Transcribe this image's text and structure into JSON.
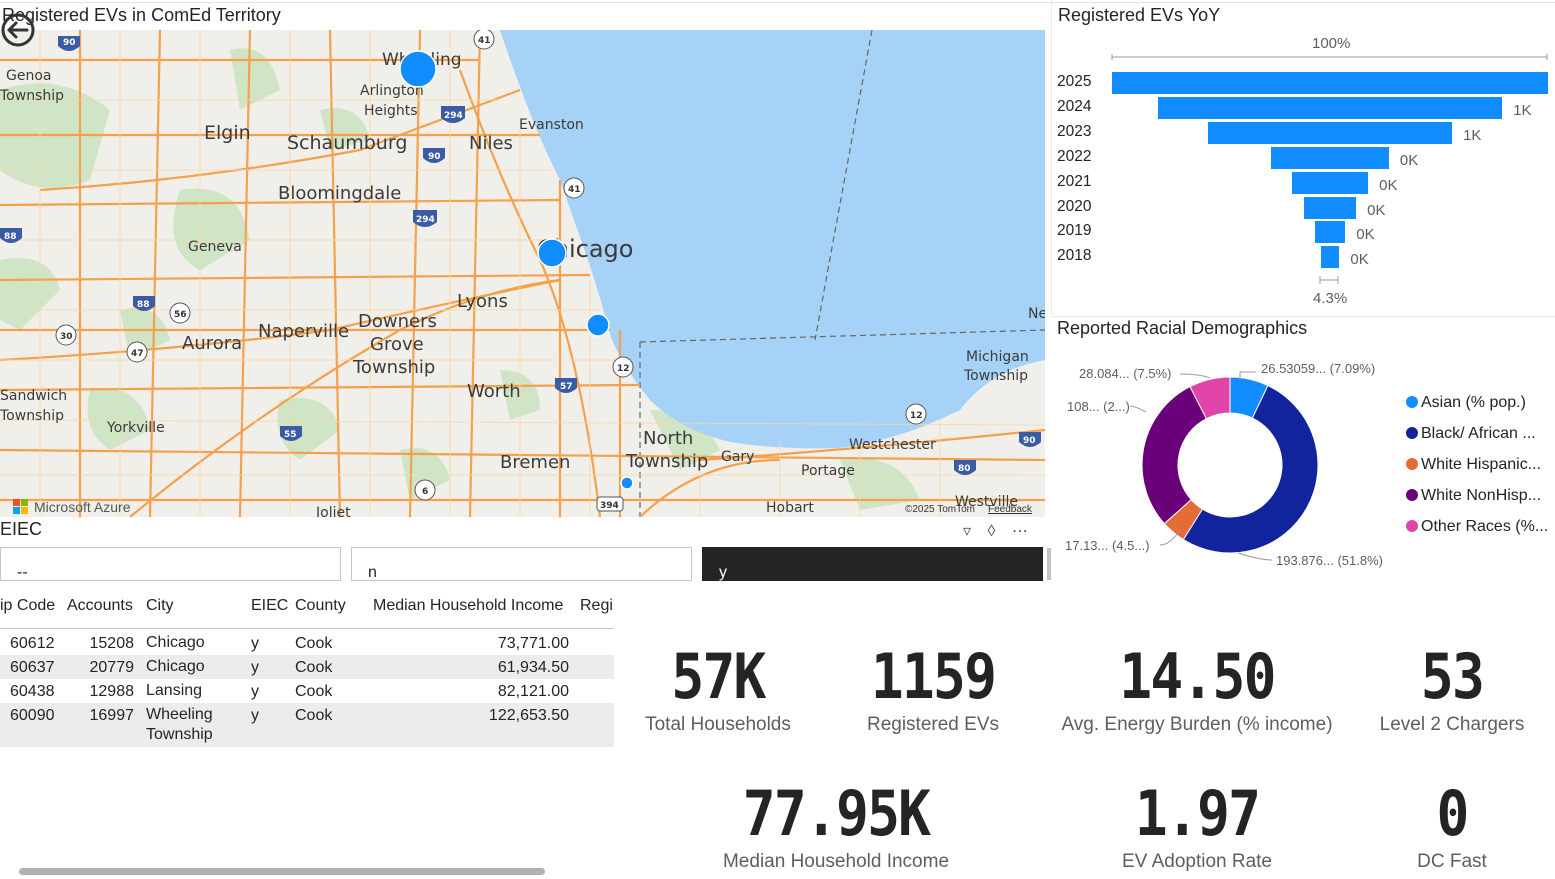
{
  "map": {
    "title": "Registered EVs in ComEd Territory",
    "attribution": "Microsoft Azure",
    "copyright": "©2025 TomTom",
    "feedback": "Feedback",
    "place_labels": [
      "Genoa Township",
      "Wheeling",
      "Arlington Heights",
      "Elgin",
      "Schaumburg",
      "Niles",
      "Evanston",
      "Bloomingdale",
      "Geneva",
      "Chicago",
      "Lyons",
      "Naperville",
      "Downers Grove Township",
      "Aurora",
      "Sandwich Township",
      "Yorkville",
      "Worth",
      "Bremen",
      "North Township",
      "Gary",
      "Westchester",
      "Portage",
      "Michigan Township",
      "Hobart",
      "Westville",
      "Joliet"
    ],
    "colors": {
      "water": "#a6d2f7",
      "land": "#f1efe9",
      "road": "#f5a04c",
      "park": "#cfe5c6",
      "bubble": "#118DFF"
    }
  },
  "funnel": {
    "title": "Registered EVs YoY",
    "top_label": "100%",
    "bottom_label": "4.3%",
    "years": [
      "2025",
      "2024",
      "2023",
      "2022",
      "2021",
      "2020",
      "2019",
      "2018"
    ],
    "value_labels": [
      "",
      "1K",
      "1K",
      "0K",
      "0K",
      "0K",
      "0K",
      "0K"
    ],
    "relative_widths": [
      1.0,
      0.79,
      0.56,
      0.27,
      0.175,
      0.12,
      0.07,
      0.043
    ],
    "color": "#118DFF"
  },
  "donut": {
    "title": "Reported Racial Demographics",
    "data_labels": [
      "26.53059... (7.09%)",
      "193.876... (51.8%)",
      "17.13... (4.5...)",
      "108... (2...)",
      "28.084... (7.5%)"
    ],
    "legend": [
      {
        "label": "Asian (% pop.)",
        "color": "#118DFF"
      },
      {
        "label": "Black/ African ...",
        "color": "#12239E"
      },
      {
        "label": "White Hispanic...",
        "color": "#E66C37"
      },
      {
        "label": "White NonHisp...",
        "color": "#6B007B"
      },
      {
        "label": "Other Races (%...",
        "color": "#E044A7"
      }
    ],
    "shares": [
      7.09,
      51.8,
      4.5,
      29.1,
      7.5
    ]
  },
  "slicer": {
    "title": "EIEC",
    "options": [
      "--",
      "n",
      "y"
    ],
    "selected": "y"
  },
  "table": {
    "headers": [
      "ip Code",
      "Accounts",
      "City",
      "EIEC",
      "County",
      "Median Household Income",
      "Regi"
    ],
    "rows": [
      [
        "60612",
        "15208",
        "Chicago",
        "y",
        "Cook",
        "73,771.00"
      ],
      [
        "60637",
        "20779",
        "Chicago",
        "y",
        "Cook",
        "61,934.50"
      ],
      [
        "60438",
        "12988",
        "Lansing",
        "y",
        "Cook",
        "82,121.00"
      ],
      [
        "60090",
        "16997",
        "Wheeling Township",
        "y",
        "Cook",
        "122,653.50"
      ]
    ]
  },
  "kpis": [
    {
      "value": "57K",
      "label": "Total Households"
    },
    {
      "value": "1159",
      "label": "Registered EVs"
    },
    {
      "value": "14.50",
      "label": "Avg. Energy Burden (% income)"
    },
    {
      "value": "53",
      "label": "Level 2 Chargers"
    },
    {
      "value": "77.95K",
      "label": "Median Household Income"
    },
    {
      "value": "1.97",
      "label": "EV Adoption Rate"
    },
    {
      "value": "0",
      "label": "DC Fast"
    }
  ]
}
